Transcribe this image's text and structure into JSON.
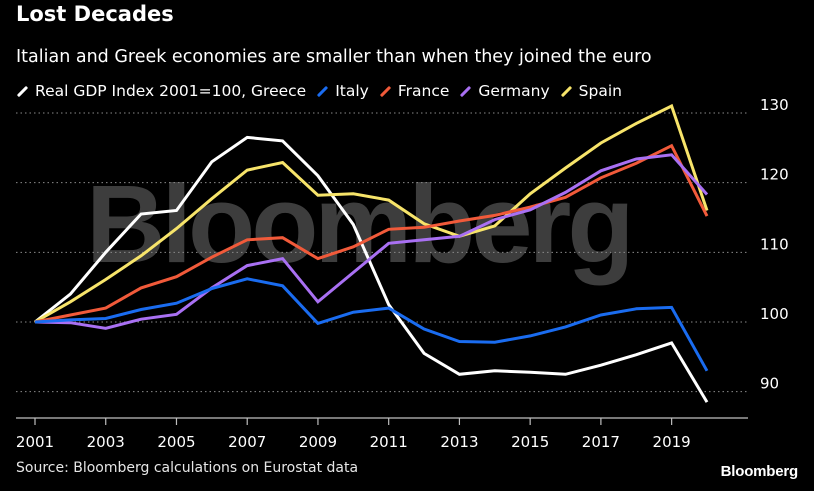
{
  "header": {
    "title": "Lost Decades",
    "subtitle": "Italian and Greek economies are smaller than when they joined the euro"
  },
  "footer": {
    "source": "Source: Bloomberg calculations on Eurostat data",
    "brand": "Bloomberg"
  },
  "watermark": "Bloomberg",
  "chart_data": {
    "type": "line",
    "title": "Lost Decades",
    "subtitle": "Italian and Greek economies are smaller than when they joined the euro",
    "xlabel": "",
    "ylabel": "",
    "x": [
      2001,
      2002,
      2003,
      2004,
      2005,
      2006,
      2007,
      2008,
      2009,
      2010,
      2011,
      2012,
      2013,
      2014,
      2015,
      2016,
      2017,
      2018,
      2019,
      2020
    ],
    "xticks": [
      "2001",
      "2003",
      "2005",
      "2007",
      "2009",
      "2011",
      "2013",
      "2015",
      "2017",
      "2019"
    ],
    "yticks": [
      "90",
      "100",
      "110",
      "120",
      "130"
    ],
    "ylim": [
      85,
      132
    ],
    "xlim": [
      2001,
      2020
    ],
    "grid": "horizontal dotted",
    "series": [
      {
        "name": "Real GDP Index 2001=100, Greece",
        "color": "#ffffff",
        "values": [
          100,
          104,
          110,
          115.5,
          116,
          123,
          126.5,
          126,
          121,
          114,
          102.5,
          95.5,
          92.5,
          93,
          92.8,
          92.5,
          93.8,
          95.3,
          97,
          88.5
        ]
      },
      {
        "name": "Italy",
        "color": "#1a6cf0",
        "values": [
          100,
          100.3,
          100.5,
          101.8,
          102.7,
          104.8,
          106.2,
          105.2,
          99.8,
          101.4,
          102,
          99,
          97.2,
          97.1,
          98,
          99.3,
          101,
          101.9,
          102.1,
          93
        ]
      },
      {
        "name": "France",
        "color": "#f15a3a",
        "values": [
          100,
          101,
          102,
          104.9,
          106.5,
          109.3,
          111.8,
          112.1,
          109.1,
          110.8,
          113.3,
          113.6,
          114.5,
          115.3,
          116.5,
          117.9,
          120.7,
          122.8,
          125.3,
          115.2
        ]
      },
      {
        "name": "Germany",
        "color": "#a970f3",
        "values": [
          100,
          99.9,
          99.1,
          100.4,
          101.1,
          104.9,
          108.1,
          109.1,
          102.9,
          107.1,
          111.3,
          111.8,
          112.3,
          114.7,
          116.1,
          118.6,
          121.7,
          123.4,
          124,
          118.3
        ]
      },
      {
        "name": "Spain",
        "color": "#f7e46a",
        "values": [
          100,
          102.9,
          106.1,
          109.5,
          113.4,
          117.7,
          121.8,
          122.9,
          118.2,
          118.4,
          117.5,
          114.1,
          112.3,
          113.8,
          118.4,
          122.1,
          125.7,
          128.5,
          131,
          116
        ]
      }
    ]
  }
}
